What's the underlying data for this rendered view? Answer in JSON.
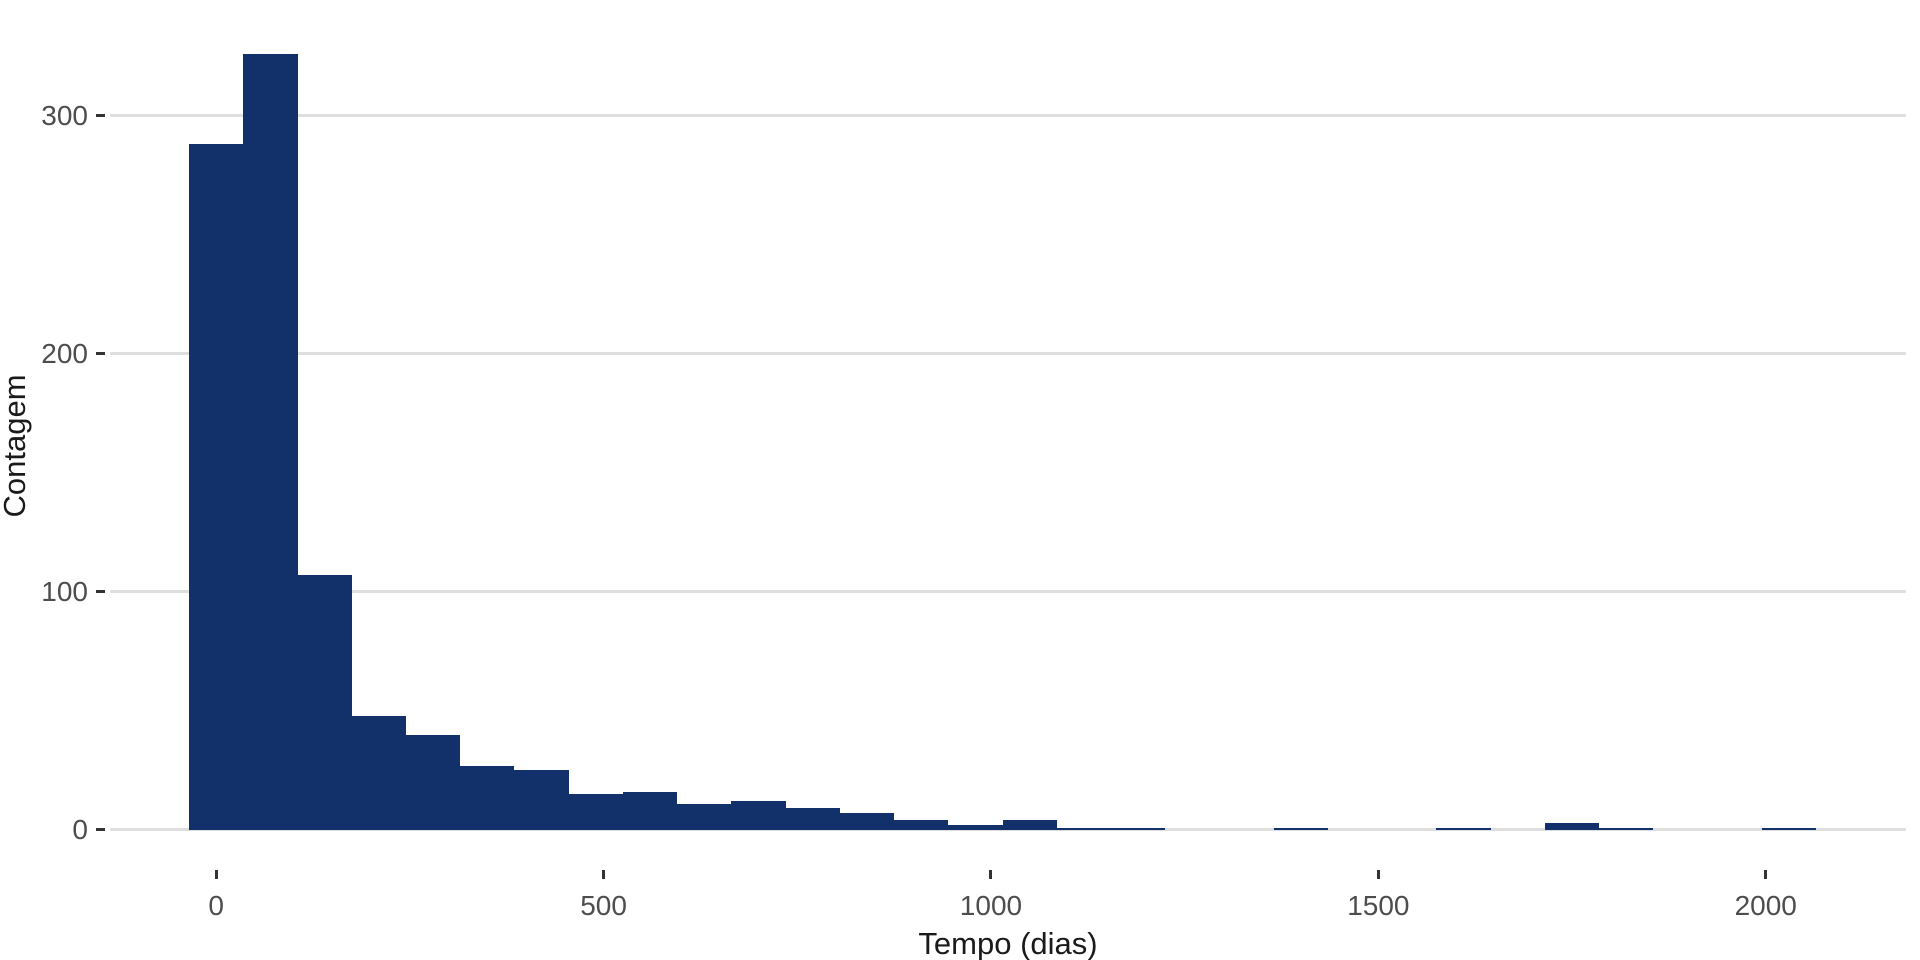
{
  "chart_data": {
    "type": "bar",
    "subtype": "histogram",
    "title": "",
    "xlabel": "Tempo (dias)",
    "ylabel": "Contagem",
    "bin_width": 70,
    "bin_centers": [
      0,
      70,
      140,
      210,
      280,
      350,
      420,
      490,
      560,
      630,
      700,
      770,
      840,
      910,
      980,
      1050,
      1120,
      1190,
      1260,
      1330,
      1400,
      1470,
      1540,
      1610,
      1680,
      1750,
      1820,
      1890,
      1960,
      2030
    ],
    "values": [
      288,
      326,
      107,
      48,
      40,
      27,
      25,
      15,
      16,
      11,
      12,
      9,
      7,
      4,
      2,
      4,
      1,
      1,
      0,
      0,
      1,
      0,
      0,
      1,
      0,
      3,
      1,
      0,
      0,
      1
    ],
    "x_ticks": [
      0,
      500,
      1000,
      1500,
      2000
    ],
    "y_ticks": [
      0,
      100,
      200,
      300
    ],
    "xlim": [
      -137,
      2181
    ],
    "ylim": [
      -16,
      341
    ],
    "grid": "horizontal-major-only",
    "legend": "none",
    "colors": {
      "bar_fill": "#12306A",
      "gridline": "#DEDEDE",
      "tick_mark": "#333333",
      "tick_label": "#4D4D4D",
      "axis_title": "#1A1A1A",
      "background": "#FFFFFF"
    }
  }
}
